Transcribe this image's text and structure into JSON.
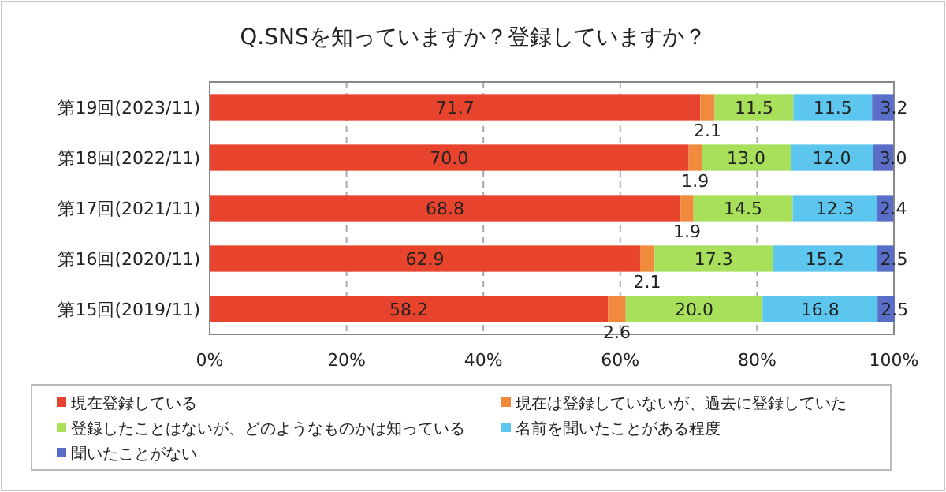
{
  "chart_data": {
    "type": "bar",
    "orientation": "horizontal",
    "stacked": true,
    "title": "Q.SNSを知っていますか？登録していますか？",
    "categories": [
      "第19回(2023/11)",
      "第18回(2022/11)",
      "第17回(2021/11)",
      "第16回(2020/11)",
      "第15回(2019/11)"
    ],
    "series": [
      {
        "name": "現在登録している",
        "color": "#e8432d",
        "values": [
          71.7,
          70.0,
          68.8,
          62.9,
          58.2
        ],
        "value_labels": [
          "71.7",
          "70.0",
          "68.8",
          "62.9",
          "58.2"
        ]
      },
      {
        "name": "現在は登録していないが、過去に登録していた",
        "color": "#f08a3c",
        "values": [
          2.1,
          1.9,
          1.9,
          2.1,
          2.6
        ],
        "value_labels": [
          "2.1",
          "1.9",
          "1.9",
          "2.1",
          "2.6"
        ]
      },
      {
        "name": "登録したことはないが、どのようなものかは知っている",
        "color": "#a8e05c",
        "values": [
          11.5,
          13.0,
          14.5,
          17.3,
          20.0
        ],
        "value_labels": [
          "11.5",
          "13.0",
          "14.5",
          "17.3",
          "20.0"
        ]
      },
      {
        "name": "名前を聞いたことがある程度",
        "color": "#5cc6ee",
        "values": [
          11.5,
          12.0,
          12.3,
          15.2,
          16.8
        ],
        "value_labels": [
          "11.5",
          "12.0",
          "12.3",
          "15.2",
          "16.8"
        ]
      },
      {
        "name": "聞いたことがない",
        "color": "#5a6ec8",
        "values": [
          3.2,
          3.0,
          2.4,
          2.5,
          2.5
        ],
        "value_labels": [
          "3.2",
          "3.0",
          "2.4",
          "2.5",
          "2.5"
        ]
      }
    ],
    "xlim": [
      0,
      100
    ],
    "xticks": [
      {
        "value": 0,
        "label": "0%"
      },
      {
        "value": 20,
        "label": "20%"
      },
      {
        "value": 40,
        "label": "40%"
      },
      {
        "value": 60,
        "label": "60%"
      },
      {
        "value": 80,
        "label": "80%"
      },
      {
        "value": 100,
        "label": "100%"
      }
    ],
    "grid": "x",
    "legend": "bottom"
  }
}
